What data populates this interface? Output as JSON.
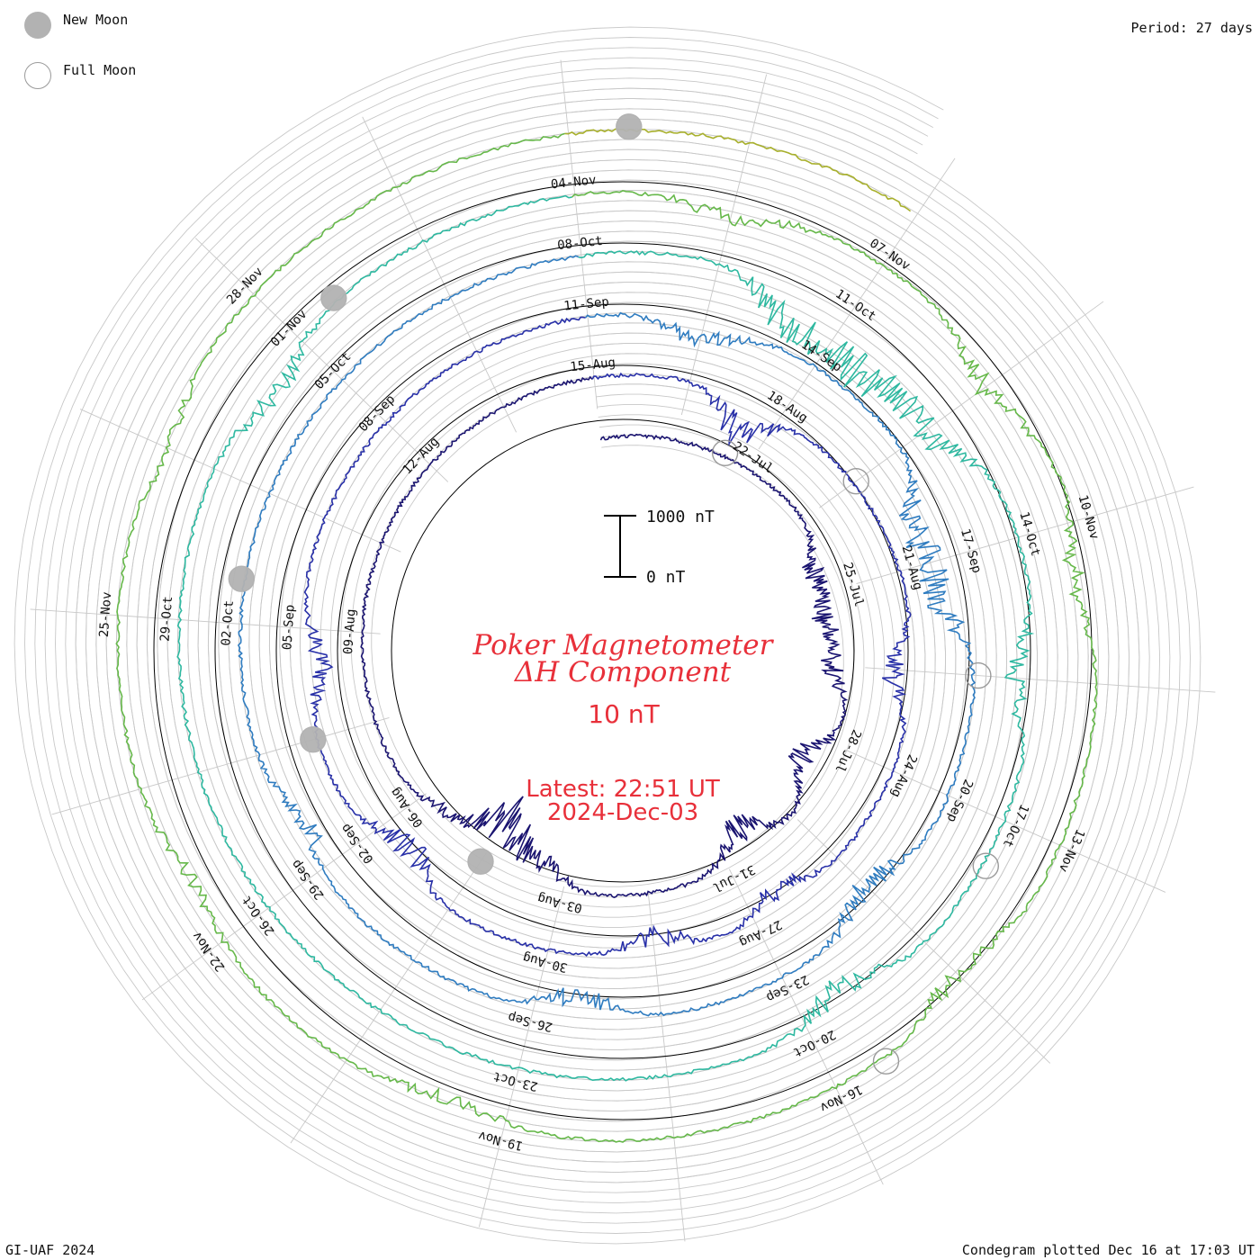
{
  "legend": {
    "new_moon": {
      "label": "New Moon",
      "color": "#b2b2b2"
    },
    "full_moon": {
      "label": "Full Moon",
      "color": "#9a9a9a"
    }
  },
  "period": "Period: 27 days",
  "credit": "GI-UAF 2024",
  "plotted": "Condegram plotted Dec 16 at 17:03 UT",
  "colors": {
    "title": "#e8303a",
    "grid": "#c8c8c8",
    "rotation_circle": "#000000",
    "scale_bar": "#000000"
  },
  "chart_data": {
    "type": "line",
    "title": "Poker Magnetometer",
    "subtitle": "ΔH Component",
    "unit_note": "10 nT",
    "latest": "Latest: 22:51 UT",
    "latest_date": "2024-Dec-03",
    "scale_bar": {
      "top_label": "1000 nT",
      "bottom_label": "0 nT",
      "range": [
        0,
        1000
      ]
    },
    "period_days": 27,
    "start_date": "2024-07-19",
    "end_date": "2024-12-03",
    "direction": "clockwise",
    "baseline_circles": 5,
    "series": [
      {
        "rotation": 1,
        "start": "2024-07-19",
        "color": "#1a1470"
      },
      {
        "rotation": 2,
        "start": "2024-08-15",
        "color": "#2830a8"
      },
      {
        "rotation": 3,
        "start": "2024-09-11",
        "color": "#2f7cc0"
      },
      {
        "rotation": 4,
        "start": "2024-10-08",
        "color": "#2eb8a0"
      },
      {
        "rotation": 5,
        "start": "2024-11-04",
        "color": "#66b84a"
      },
      {
        "rotation": 6,
        "start": "2024-11-04",
        "color": "#a8b02c"
      },
      {
        "rotation": 7,
        "start": "2024-11-04",
        "color": "#c8901c"
      },
      {
        "rotation": 8,
        "start": "2024-11-04",
        "color": "#c85a14"
      }
    ],
    "rotation_palette": [
      "#1a1470",
      "#2830a8",
      "#2f7cc0",
      "#2eb8a0",
      "#66b84a",
      "#a8b02c",
      "#c8901c",
      "#c85a14"
    ],
    "date_labels": [
      [
        "22-Jul",
        "25-Jul",
        "28-Jul",
        "31-Jul",
        "03-Aug",
        "06-Aug",
        "09-Aug",
        "12-Aug",
        "15-Aug"
      ],
      [
        "18-Aug",
        "21-Aug",
        "24-Aug",
        "27-Aug",
        "30-Aug",
        "02-Sep",
        "05-Sep",
        "08-Sep",
        "11-Sep"
      ],
      [
        "14-Sep",
        "17-Sep",
        "20-Sep",
        "23-Sep",
        "26-Sep",
        "29-Sep",
        "02-Oct",
        "05-Oct",
        "08-Oct"
      ],
      [
        "11-Oct",
        "14-Oct",
        "17-Oct",
        "20-Oct",
        "23-Oct",
        "26-Oct",
        "29-Oct",
        "01-Nov",
        "04-Nov"
      ],
      [
        "07-Nov",
        "10-Nov",
        "13-Nov",
        "16-Nov",
        "19-Nov",
        "22-Nov",
        "25-Nov",
        "28-Nov"
      ]
    ],
    "moons": [
      {
        "type": "full",
        "date": "2024-07-21"
      },
      {
        "type": "new",
        "date": "2024-08-04"
      },
      {
        "type": "full",
        "date": "2024-08-19"
      },
      {
        "type": "new",
        "date": "2024-09-03"
      },
      {
        "type": "full",
        "date": "2024-09-18"
      },
      {
        "type": "new",
        "date": "2024-10-02"
      },
      {
        "type": "full",
        "date": "2024-10-17"
      },
      {
        "type": "new",
        "date": "2024-11-01"
      },
      {
        "type": "full",
        "date": "2024-11-15"
      },
      {
        "type": "new",
        "date": "2024-12-01"
      }
    ],
    "events": [
      {
        "date": "2024-07-24",
        "nT": 350
      },
      {
        "date": "2024-07-25",
        "nT": 420
      },
      {
        "date": "2024-07-26",
        "nT": 380
      },
      {
        "date": "2024-07-28",
        "nT": 520
      },
      {
        "date": "2024-07-30",
        "nT": 560
      },
      {
        "date": "2024-08-03",
        "nT": 400
      },
      {
        "date": "2024-08-04",
        "nT": 900
      },
      {
        "date": "2024-08-05",
        "nT": 220
      },
      {
        "date": "2024-08-17",
        "nT": 600
      },
      {
        "date": "2024-08-22",
        "nT": 400
      },
      {
        "date": "2024-08-26",
        "nT": 320
      },
      {
        "date": "2024-08-28",
        "nT": 350
      },
      {
        "date": "2024-09-01",
        "nT": 500
      },
      {
        "date": "2024-09-04",
        "nT": 380
      },
      {
        "date": "2024-09-12",
        "nT": 380
      },
      {
        "date": "2024-09-16",
        "nT": 620
      },
      {
        "date": "2024-09-17",
        "nT": 560
      },
      {
        "date": "2024-09-21",
        "nT": 440
      },
      {
        "date": "2024-09-25",
        "nT": 400
      },
      {
        "date": "2024-09-29",
        "nT": 300
      },
      {
        "date": "2024-10-10",
        "nT": 750
      },
      {
        "date": "2024-10-11",
        "nT": 700
      },
      {
        "date": "2024-10-12",
        "nT": 600
      },
      {
        "date": "2024-10-15",
        "nT": 380
      },
      {
        "date": "2024-10-19",
        "nT": 420
      },
      {
        "date": "2024-10-31",
        "nT": 350
      },
      {
        "date": "2024-11-05",
        "nT": 300
      },
      {
        "date": "2024-11-08",
        "nT": 400
      },
      {
        "date": "2024-11-10",
        "nT": 300
      },
      {
        "date": "2024-11-14",
        "nT": 350
      },
      {
        "date": "2024-11-19",
        "nT": 280
      },
      {
        "date": "2024-11-22",
        "nT": 250
      },
      {
        "date": "2024-11-26",
        "nT": 220
      }
    ]
  }
}
